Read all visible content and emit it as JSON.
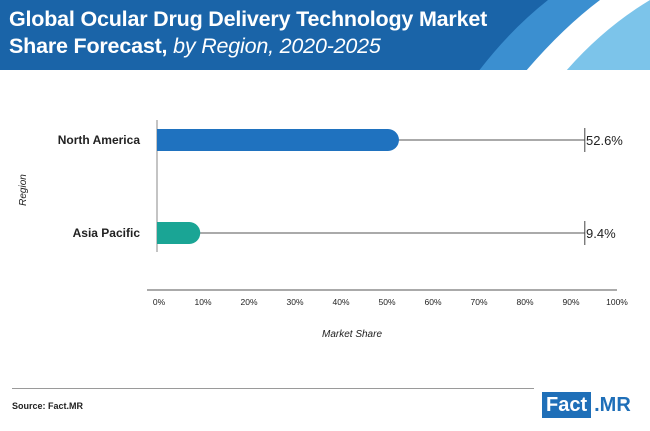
{
  "header": {
    "title_main": "Global Ocular Drug Delivery Technology Market",
    "title_line2": "Share Forecast,",
    "title_sub": "by Region, 2020-2025"
  },
  "source": "Source: Fact.MR",
  "logo": {
    "fact": "Fact",
    "mr": ".MR"
  },
  "colors": {
    "header_dark": "#1a64a8",
    "header_mid": "#3b8fd0",
    "header_light": "#7cc4ea",
    "north_america": "#1f72bf",
    "asia_pacific": "#1aa595"
  },
  "chart_data": {
    "type": "bar",
    "orientation": "horizontal",
    "categories": [
      "North America",
      "Asia Pacific"
    ],
    "values": [
      52.6,
      9.4
    ],
    "data_labels": [
      "52.6%",
      "9.4%"
    ],
    "bar_colors": [
      "#1f72bf",
      "#1aa595"
    ],
    "xlabel": "Market Share",
    "ylabel": "Region",
    "xlim": [
      0,
      100
    ],
    "xticks": [
      "0%",
      "10%",
      "20%",
      "30%",
      "40%",
      "50%",
      "60%",
      "70%",
      "80%",
      "90%",
      "100%"
    ],
    "reference_line_end": 93
  }
}
